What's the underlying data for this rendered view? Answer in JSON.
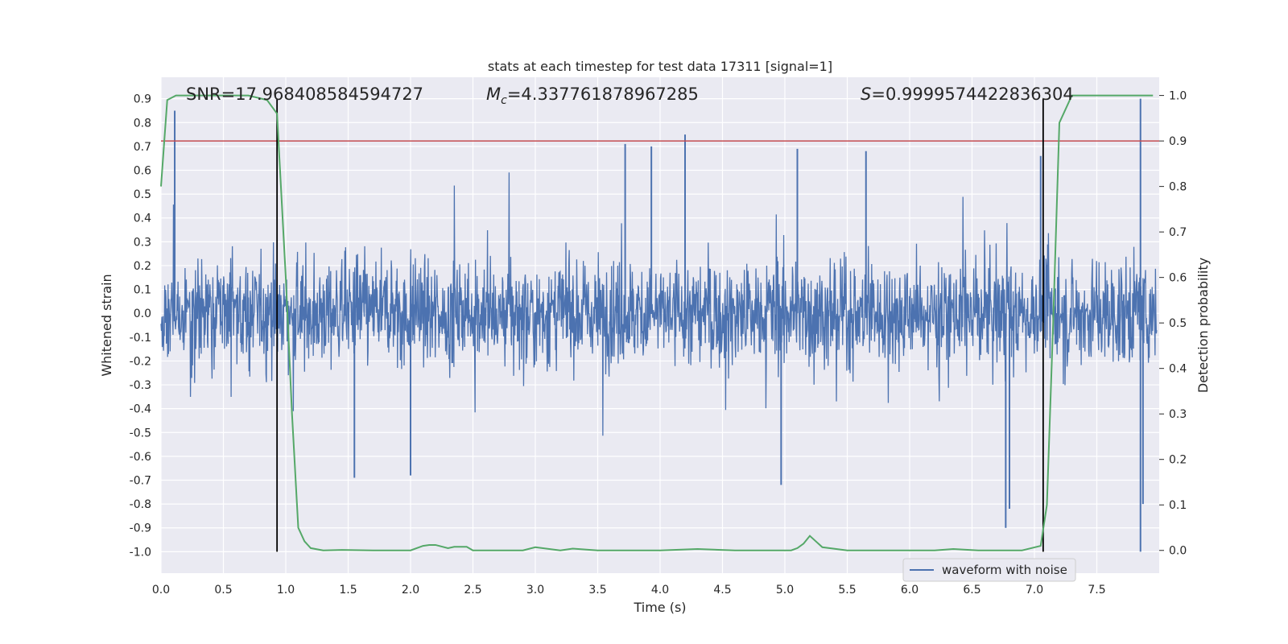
{
  "chart_data": {
    "type": "line",
    "title": "stats at each timestep for test data 17311 [signal=1]",
    "xlabel": "Time (s)",
    "ylabel_left": "Whitened strain",
    "ylabel_right": "Detection probability",
    "xlim": [
      0.0,
      8.0
    ],
    "ylim_left": [
      -1.09,
      0.99
    ],
    "ylim_right": [
      -0.05,
      1.04
    ],
    "x_ticks": [
      "0.0",
      "0.5",
      "1.0",
      "1.5",
      "2.0",
      "2.5",
      "3.0",
      "3.5",
      "4.0",
      "4.5",
      "5.0",
      "5.5",
      "6.0",
      "6.5",
      "7.0",
      "7.5"
    ],
    "y_ticks_left": [
      "0.9",
      "0.8",
      "0.7",
      "0.6",
      "0.5",
      "0.4",
      "0.3",
      "0.2",
      "0.1",
      "0.0",
      "-0.1",
      "-0.2",
      "-0.3",
      "-0.4",
      "-0.5",
      "-0.6",
      "-0.7",
      "-0.8",
      "-0.9",
      "-1.0"
    ],
    "y_ticks_right": [
      "1.0",
      "0.9",
      "0.8",
      "0.7",
      "0.6",
      "0.5",
      "0.4",
      "0.3",
      "0.2",
      "0.1",
      "0.0"
    ],
    "annotations": {
      "snr": "SNR=17.968408584594727",
      "mc_symbol": "M",
      "mc_sub": "c",
      "mc_value": "=4.337761878967285",
      "s_symbol": "S",
      "s_value": "=0.9999574422836304"
    },
    "threshold": {
      "axis": "right",
      "value": 0.9,
      "color": "#c44e52"
    },
    "vlines": [
      0.93,
      7.07
    ],
    "vline_range_left": [
      -1.0,
      0.9
    ],
    "waveform": {
      "name": "waveform with noise",
      "color": "#4c72b0",
      "envelope_note": "dense noisy signal, amplitude mostly within [-0.45, 0.45]",
      "peaks": [
        {
          "t": 0.11,
          "v": 0.85
        },
        {
          "t": 2.0,
          "v": -0.68
        },
        {
          "t": 3.72,
          "v": 0.71
        },
        {
          "t": 4.2,
          "v": 0.75
        },
        {
          "t": 4.97,
          "v": -0.72
        },
        {
          "t": 5.65,
          "v": 0.68
        },
        {
          "t": 6.77,
          "v": -0.9
        },
        {
          "t": 6.8,
          "v": -0.82
        },
        {
          "t": 7.85,
          "v": 0.9
        },
        {
          "t": 7.85,
          "v": -1.0
        },
        {
          "t": 7.87,
          "v": -0.8
        },
        {
          "t": 1.55,
          "v": -0.69
        },
        {
          "t": 3.93,
          "v": 0.7
        },
        {
          "t": 5.1,
          "v": 0.69
        },
        {
          "t": 7.05,
          "v": 0.66
        }
      ]
    },
    "probability": {
      "name": "detection probability",
      "color": "#55a868",
      "axis": "right",
      "x": [
        0.0,
        0.05,
        0.12,
        0.2,
        0.3,
        0.5,
        0.7,
        0.85,
        0.93,
        1.0,
        1.05,
        1.1,
        1.15,
        1.2,
        1.3,
        1.45,
        1.7,
        1.9,
        2.0,
        2.1,
        2.15,
        2.2,
        2.3,
        2.35,
        2.45,
        2.5,
        2.7,
        2.9,
        3.0,
        3.2,
        3.3,
        3.5,
        4.0,
        4.3,
        4.6,
        4.9,
        5.05,
        5.1,
        5.15,
        5.2,
        5.3,
        5.5,
        5.7,
        6.0,
        6.2,
        6.35,
        6.55,
        6.8,
        6.9,
        7.05,
        7.1,
        7.15,
        7.2,
        7.3,
        7.5,
        7.8,
        7.95
      ],
      "values": [
        0.8,
        0.99,
        1.0,
        1.0,
        1.0,
        1.0,
        1.0,
        0.99,
        0.96,
        0.6,
        0.3,
        0.05,
        0.02,
        0.005,
        0.0,
        0.001,
        0.0,
        0.0,
        0.0,
        0.01,
        0.012,
        0.012,
        0.005,
        0.008,
        0.008,
        0.0,
        0.0,
        0.0,
        0.007,
        0.0,
        0.004,
        0.0,
        0.0,
        0.003,
        0.0,
        0.0,
        0.0,
        0.005,
        0.015,
        0.032,
        0.007,
        0.0,
        0.0,
        0.0,
        0.0,
        0.003,
        0.0,
        0.0,
        0.0,
        0.01,
        0.1,
        0.5,
        0.94,
        1.0,
        1.0,
        1.0,
        1.0
      ]
    },
    "legend": {
      "placement": "lower-right",
      "entries": [
        "waveform with noise"
      ]
    },
    "grid": true
  }
}
